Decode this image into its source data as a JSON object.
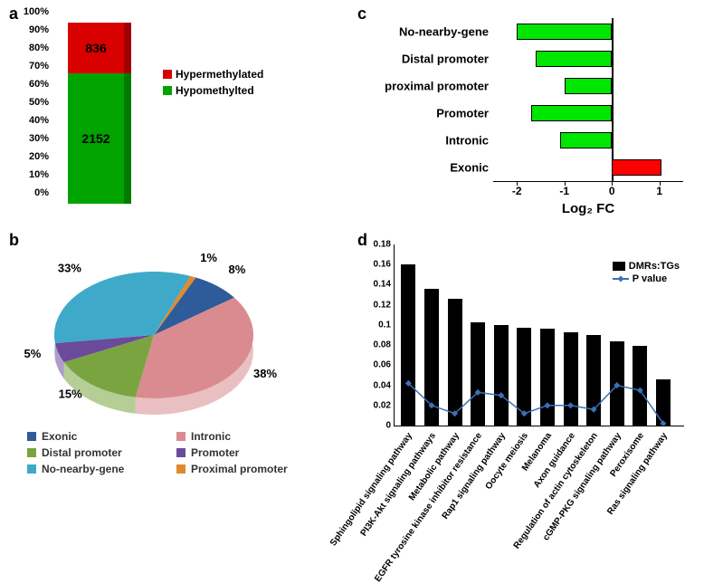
{
  "labels": {
    "a": "a",
    "b": "b",
    "c": "c",
    "d": "d"
  },
  "panelA": {
    "type": "stacked-bar",
    "y_ticks": [
      "0%",
      "10%",
      "20%",
      "30%",
      "40%",
      "50%",
      "60%",
      "70%",
      "80%",
      "90%",
      "100%"
    ],
    "segments": [
      {
        "name": "Hypomethylted",
        "value": 2152,
        "pct": 72,
        "color": "#00a300"
      },
      {
        "name": "Hypermethylated",
        "value": 836,
        "pct": 28,
        "color": "#d90000"
      }
    ],
    "legend": [
      {
        "label": "Hypermethylated",
        "color": "#d90000"
      },
      {
        "label": "Hypomethylted",
        "color": "#00a300"
      }
    ]
  },
  "panelB": {
    "type": "pie",
    "slices": [
      {
        "label": "Exonic",
        "pct": 8,
        "color": "#2e5b9a"
      },
      {
        "label": "Intronic",
        "pct": 38,
        "color": "#d98b8f"
      },
      {
        "label": "Distal promoter",
        "pct": 15,
        "color": "#7aa43f"
      },
      {
        "label": "Promoter",
        "pct": 5,
        "color": "#6b4a9c"
      },
      {
        "label": "No-nearby-gene",
        "pct": 33,
        "color": "#3fa9c9"
      },
      {
        "label": "Proximal promoter",
        "pct": 1,
        "color": "#e08a2e"
      }
    ],
    "legend_rows": [
      [
        {
          "label": "Exonic",
          "color": "#2e5b9a"
        },
        {
          "label": "Intronic",
          "color": "#d98b8f"
        }
      ],
      [
        {
          "label": "Distal promoter",
          "color": "#7aa43f"
        },
        {
          "label": "Promoter",
          "color": "#6b4a9c"
        }
      ],
      [
        {
          "label": "No-nearby-gene",
          "color": "#3fa9c9"
        },
        {
          "label": "Proximal promoter",
          "color": "#e08a2e"
        }
      ]
    ]
  },
  "panelC": {
    "type": "bar-horizontal",
    "x_label": "Log₂ FC",
    "x_min": -2.5,
    "x_max": 1.5,
    "x_ticks": [
      -2,
      -1,
      0,
      1
    ],
    "neg_color": "#00e600",
    "pos_color": "#ff0000",
    "bars": [
      {
        "label": "No-nearby-gene",
        "value": -2.0
      },
      {
        "label": "Distal promoter",
        "value": -1.6
      },
      {
        "label": "proximal promoter",
        "value": -1.0
      },
      {
        "label": "Promoter",
        "value": -1.7
      },
      {
        "label": "Intronic",
        "value": -1.1
      },
      {
        "label": "Exonic",
        "value": 1.05
      }
    ]
  },
  "panelD": {
    "type": "bar-line",
    "y_max": 0.18,
    "y_ticks": [
      0,
      0.02,
      0.04,
      0.06,
      0.08,
      0.1,
      0.12,
      0.14,
      0.16,
      0.18
    ],
    "bar_color": "#000000",
    "line_color": "#3b6fb6",
    "legend": [
      {
        "label": "DMRs:TGs",
        "kind": "bar"
      },
      {
        "label": "P value",
        "kind": "line"
      }
    ],
    "items": [
      {
        "label": "Sphingolipid signaling pathway",
        "bar": 0.16,
        "p": 0.042
      },
      {
        "label": "PI3K-Akt signaling pathways",
        "bar": 0.136,
        "p": 0.02
      },
      {
        "label": "Metabolic pathway",
        "bar": 0.126,
        "p": 0.012
      },
      {
        "label": "EGFR tyrosine kinase inhibitor resistance",
        "bar": 0.103,
        "p": 0.033
      },
      {
        "label": "Rap1 signaling pathway",
        "bar": 0.1,
        "p": 0.03
      },
      {
        "label": "Oocyte meiosis",
        "bar": 0.097,
        "p": 0.012
      },
      {
        "label": "Melanoma",
        "bar": 0.096,
        "p": 0.02
      },
      {
        "label": "Axon guidance",
        "bar": 0.093,
        "p": 0.02
      },
      {
        "label": "Regulation of actin cytoskeleton",
        "bar": 0.09,
        "p": 0.016
      },
      {
        "label": "cGMP-PKG signaling pathway",
        "bar": 0.084,
        "p": 0.04
      },
      {
        "label": "Peroxisome",
        "bar": 0.079,
        "p": 0.035
      },
      {
        "label": "Ras signaling pathway",
        "bar": 0.046,
        "p": 0.002
      }
    ]
  }
}
